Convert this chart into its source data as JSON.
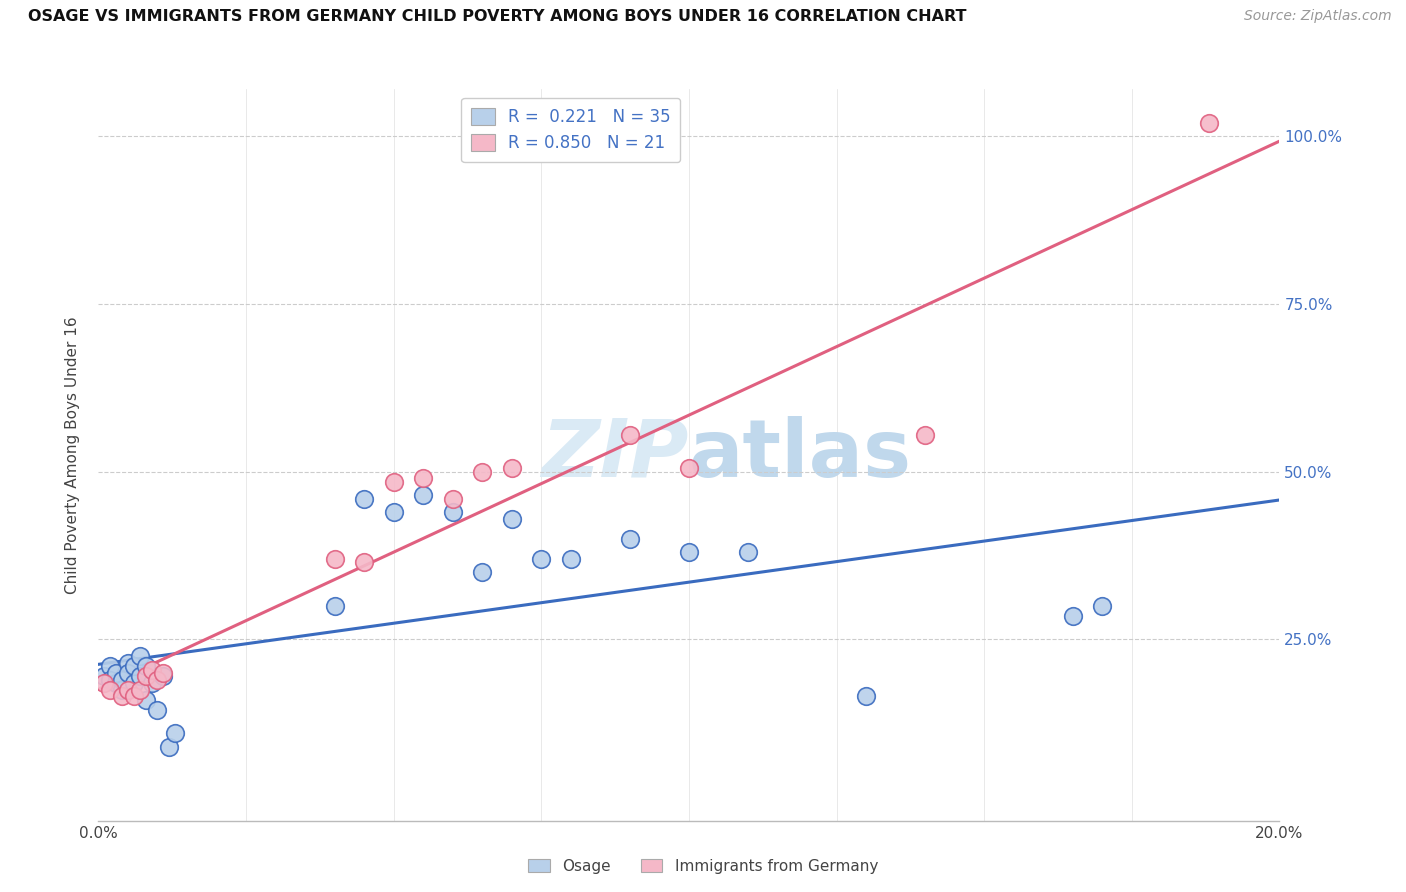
{
  "title": "OSAGE VS IMMIGRANTS FROM GERMANY CHILD POVERTY AMONG BOYS UNDER 16 CORRELATION CHART",
  "source": "Source: ZipAtlas.com",
  "ylabel": "Child Poverty Among Boys Under 16",
  "legend_bottom": [
    "Osage",
    "Immigrants from Germany"
  ],
  "blue_R": 0.221,
  "blue_N": 35,
  "pink_R": 0.85,
  "pink_N": 21,
  "blue_color": "#b8d0ea",
  "pink_color": "#f5b8c8",
  "blue_line_color": "#3a6bbf",
  "pink_line_color": "#e06080",
  "watermark_color": "#daeaf5",
  "xlim": [
    0.0,
    0.2
  ],
  "ylim": [
    -0.02,
    1.07
  ],
  "blue_scatter_x": [
    0.001,
    0.002,
    0.002,
    0.003,
    0.003,
    0.004,
    0.004,
    0.005,
    0.005,
    0.006,
    0.006,
    0.007,
    0.007,
    0.008,
    0.008,
    0.009,
    0.01,
    0.011,
    0.012,
    0.013,
    0.04,
    0.045,
    0.05,
    0.055,
    0.06,
    0.065,
    0.07,
    0.075,
    0.08,
    0.09,
    0.1,
    0.11,
    0.13,
    0.165,
    0.17
  ],
  "blue_scatter_y": [
    0.195,
    0.21,
    0.19,
    0.185,
    0.2,
    0.175,
    0.19,
    0.215,
    0.2,
    0.185,
    0.21,
    0.225,
    0.195,
    0.21,
    0.16,
    0.185,
    0.145,
    0.195,
    0.09,
    0.11,
    0.3,
    0.46,
    0.44,
    0.465,
    0.44,
    0.35,
    0.43,
    0.37,
    0.37,
    0.4,
    0.38,
    0.38,
    0.165,
    0.285,
    0.3
  ],
  "pink_scatter_x": [
    0.001,
    0.002,
    0.004,
    0.005,
    0.006,
    0.007,
    0.008,
    0.009,
    0.01,
    0.011,
    0.04,
    0.045,
    0.05,
    0.055,
    0.06,
    0.065,
    0.07,
    0.09,
    0.1,
    0.14,
    0.188
  ],
  "pink_scatter_y": [
    0.185,
    0.175,
    0.165,
    0.175,
    0.165,
    0.175,
    0.195,
    0.205,
    0.19,
    0.2,
    0.37,
    0.365,
    0.485,
    0.49,
    0.46,
    0.5,
    0.505,
    0.555,
    0.505,
    0.555,
    1.02
  ]
}
